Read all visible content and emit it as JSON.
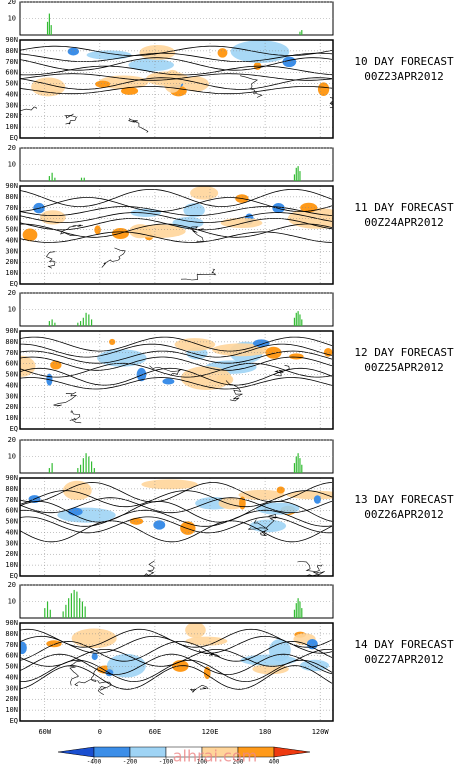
{
  "panels": [
    {
      "title": "10 DAY FORECAST",
      "date": "00Z23APR2012",
      "bar_chart": {
        "type": "bar",
        "color": "#33bb33",
        "ylim": [
          0,
          20
        ],
        "yticks": [
          10,
          20
        ],
        "x": [
          -57,
          -55,
          -53,
          218,
          220
        ],
        "values": [
          8,
          13,
          6,
          2,
          3
        ]
      }
    },
    {
      "title": "11 DAY FORECAST",
      "date": "00Z24APR2012",
      "bar_chart": {
        "type": "bar",
        "color": "#33bb33",
        "ylim": [
          0,
          20
        ],
        "yticks": [
          10,
          20
        ],
        "x": [
          -55,
          -52,
          -49,
          -20,
          -17,
          212,
          214,
          216,
          218
        ],
        "values": [
          3,
          5,
          2,
          2,
          2,
          4,
          8,
          9,
          6
        ]
      }
    },
    {
      "title": "12 DAY FORECAST",
      "date": "00Z25APR2012",
      "bar_chart": {
        "type": "bar",
        "color": "#33bb33",
        "ylim": [
          0,
          20
        ],
        "yticks": [
          10,
          20
        ],
        "x": [
          -55,
          -52,
          -49,
          -24,
          -21,
          -18,
          -15,
          -12,
          -9,
          212,
          214,
          216,
          218,
          220
        ],
        "values": [
          3,
          4,
          2,
          2,
          3,
          5,
          8,
          7,
          4,
          5,
          8,
          9,
          7,
          4
        ]
      }
    },
    {
      "title": "13 DAY FORECAST",
      "date": "00Z26APR2012",
      "bar_chart": {
        "type": "bar",
        "color": "#33bb33",
        "ylim": [
          0,
          20
        ],
        "yticks": [
          10,
          20
        ],
        "x": [
          -55,
          -52,
          -24,
          -21,
          -18,
          -15,
          -12,
          -9,
          -6,
          212,
          214,
          216,
          218,
          220
        ],
        "values": [
          3,
          6,
          3,
          5,
          9,
          12,
          10,
          7,
          3,
          6,
          10,
          12,
          9,
          5
        ]
      }
    },
    {
      "title": "14 DAY FORECAST",
      "date": "00Z27APR2012",
      "bar_chart": {
        "type": "bar",
        "color": "#33bb33",
        "ylim": [
          0,
          20
        ],
        "yticks": [
          10,
          20
        ],
        "x": [
          -60,
          -57,
          -54,
          -40,
          -37,
          -34,
          -31,
          -28,
          -25,
          -22,
          -19,
          -16,
          212,
          214,
          216,
          218,
          220
        ],
        "values": [
          6,
          10,
          5,
          4,
          8,
          12,
          15,
          17,
          16,
          12,
          10,
          7,
          5,
          9,
          12,
          10,
          6
        ]
      }
    }
  ],
  "map": {
    "xlim": [
      -87,
      254
    ],
    "ylim": [
      0,
      90
    ],
    "latitude_labels": [
      {
        "value": 90,
        "label": "90N"
      },
      {
        "value": 80,
        "label": "80N"
      },
      {
        "value": 70,
        "label": "70N"
      },
      {
        "value": 60,
        "label": "60N"
      },
      {
        "value": 50,
        "label": "50N"
      },
      {
        "value": 40,
        "label": "40N"
      },
      {
        "value": 30,
        "label": "30N"
      },
      {
        "value": 20,
        "label": "20N"
      },
      {
        "value": 10,
        "label": "10N"
      },
      {
        "value": 0,
        "label": "EQ"
      }
    ],
    "longitude_labels": [
      {
        "value": -60,
        "label": "60W"
      },
      0,
      {
        "value": 60,
        "label": "60E"
      },
      {
        "value": 120,
        "label": "120E"
      },
      180,
      {
        "value": 240,
        "label": "120W"
      }
    ]
  },
  "colorbar": {
    "ticks": [
      -400,
      -200,
      -100,
      100,
      200,
      400
    ],
    "colors": [
      "#1a4fd0",
      "#3c8ee8",
      "#9fd4f5",
      "#ffffff",
      "#ffd59a",
      "#ff9a1a",
      "#ee3a10"
    ]
  },
  "watermark": "alhrai.com"
}
